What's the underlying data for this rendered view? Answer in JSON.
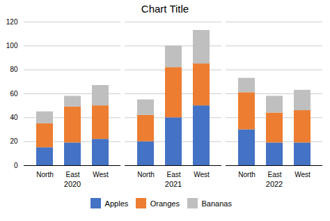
{
  "chart_data": [
    {
      "type": "bar",
      "title": "Chart Title",
      "xlabel": "2020",
      "stacked": true,
      "categories": [
        "North",
        "East",
        "West"
      ],
      "series": [
        {
          "name": "Apples",
          "color": "#4472C4",
          "values": [
            15,
            19,
            22
          ]
        },
        {
          "name": "Oranges",
          "color": "#ED7D31",
          "values": [
            20,
            30,
            28
          ]
        },
        {
          "name": "Bananas",
          "color": "#BFBFBF",
          "values": [
            10,
            9,
            17
          ]
        }
      ],
      "ylim": [
        0,
        120
      ],
      "yticks": [
        0,
        20,
        40,
        60,
        80,
        100,
        120
      ],
      "grid": true,
      "legend": "bottom"
    },
    {
      "type": "bar",
      "xlabel": "2021",
      "stacked": true,
      "categories": [
        "North",
        "East",
        "West"
      ],
      "series": [
        {
          "name": "Apples",
          "color": "#4472C4",
          "values": [
            20,
            40,
            50
          ]
        },
        {
          "name": "Oranges",
          "color": "#ED7D31",
          "values": [
            22,
            42,
            35
          ]
        },
        {
          "name": "Bananas",
          "color": "#BFBFBF",
          "values": [
            13,
            18,
            28
          ]
        }
      ],
      "ylim": [
        0,
        120
      ],
      "yticks": [
        0,
        20,
        40,
        60,
        80,
        100,
        120
      ],
      "grid": true,
      "tick_labels": "x"
    },
    {
      "type": "bar",
      "xlabel": "2022",
      "stacked": true,
      "categories": [
        "North",
        "East",
        "West"
      ],
      "series": [
        {
          "name": "Apples",
          "color": "#4472C4",
          "values": [
            30,
            19,
            19
          ]
        },
        {
          "name": "Oranges",
          "color": "#ED7D31",
          "values": [
            31,
            25,
            27
          ]
        },
        {
          "name": "Bananas",
          "color": "#BFBFBF",
          "values": [
            12,
            14,
            17
          ]
        }
      ],
      "ylim": [
        0,
        120
      ],
      "yticks": [
        0,
        20,
        40,
        60,
        80,
        100,
        120
      ],
      "grid": true,
      "tick_labels": "x"
    }
  ]
}
